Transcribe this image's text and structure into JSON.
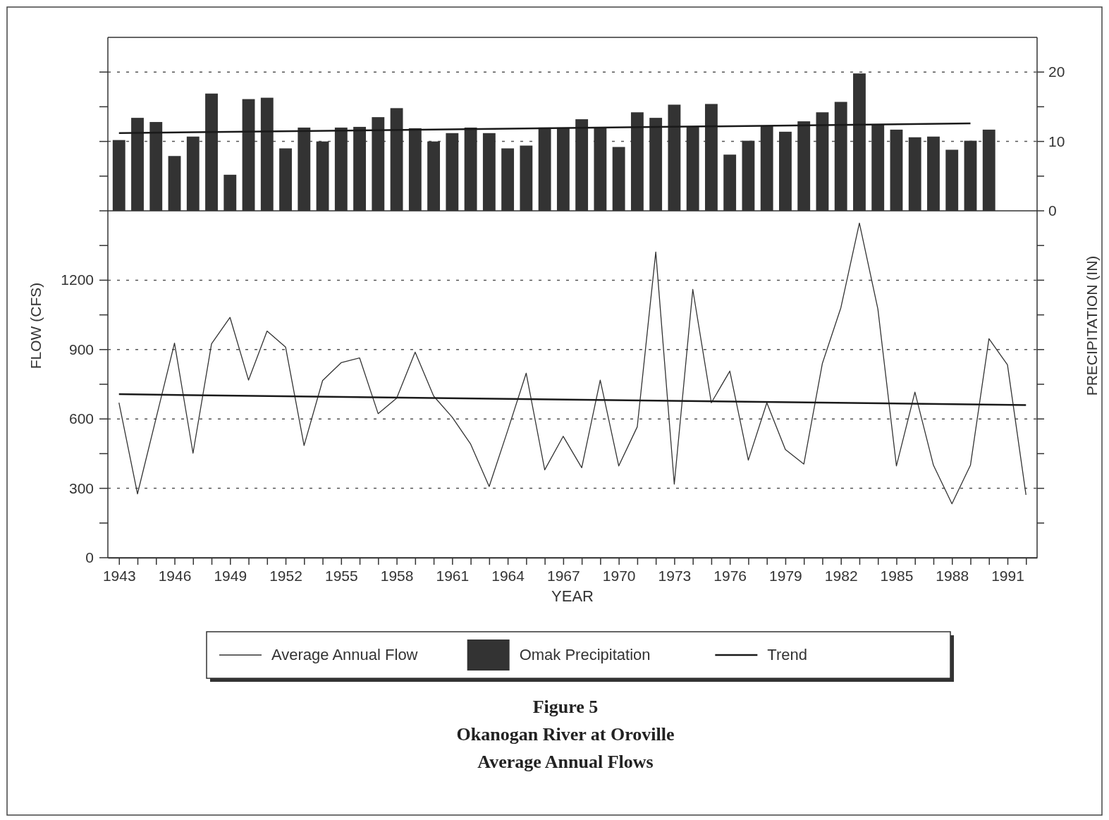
{
  "chart_data": {
    "type": "line",
    "title": "Figure 5",
    "subtitle": "Okanogan River at Oroville\nAverage Annual Flows",
    "xlabel": "YEAR",
    "ylabel": "FLOW (CFS)",
    "y2label": "PRECIPITATION (IN)",
    "xlim": [
      1942.4,
      1992.6
    ],
    "xticks": [
      1943,
      {
        "value": 1944,
        "label": null
      },
      {
        "value": 1945,
        "label": null
      },
      1946,
      {
        "value": 1947,
        "label": null
      },
      {
        "value": 1948,
        "label": null
      },
      1949,
      {
        "value": 1950,
        "label": null
      },
      {
        "value": 1951,
        "label": null
      },
      1952,
      {
        "value": 1953,
        "label": null
      },
      {
        "value": 1954,
        "label": null
      },
      1955,
      {
        "value": 1956,
        "label": null
      },
      {
        "value": 1957,
        "label": null
      },
      1958,
      {
        "value": 1959,
        "label": null
      },
      {
        "value": 1960,
        "label": null
      },
      1961,
      {
        "value": 1962,
        "label": null
      },
      {
        "value": 1963,
        "label": null
      },
      1964,
      {
        "value": 1965,
        "label": null
      },
      {
        "value": 1966,
        "label": null
      },
      1967,
      {
        "value": 1968,
        "label": null
      },
      {
        "value": 1969,
        "label": null
      },
      1970,
      {
        "value": 1971,
        "label": null
      },
      {
        "value": 1972,
        "label": null
      },
      1973,
      {
        "value": 1974,
        "label": null
      },
      {
        "value": 1975,
        "label": null
      },
      1976,
      {
        "value": 1977,
        "label": null
      },
      {
        "value": 1978,
        "label": null
      },
      1979,
      {
        "value": 1980,
        "label": null
      },
      {
        "value": 1981,
        "label": null
      },
      1982,
      {
        "value": 1983,
        "label": null
      },
      {
        "value": 1984,
        "label": null
      },
      1985,
      {
        "value": 1986,
        "label": null
      },
      {
        "value": 1987,
        "label": null
      },
      1988,
      {
        "value": 1989,
        "label": null
      },
      {
        "value": 1990,
        "label": null
      },
      1991,
      {
        "value": 1992,
        "label": null
      }
    ],
    "ylim": [
      0,
      2250
    ],
    "yticks": [
      0,
      {
        "value": 150,
        "label": null
      },
      300,
      {
        "value": 450,
        "label": null
      },
      600,
      {
        "value": 750,
        "label": null
      },
      900,
      {
        "value": 1050,
        "label": null
      },
      1200,
      {
        "value": 1350,
        "label": null
      },
      {
        "value": 1500,
        "label": null
      },
      {
        "value": 1650,
        "label": null
      },
      {
        "value": 1800,
        "label": null
      },
      {
        "value": 1950,
        "label": null
      },
      {
        "value": 2100,
        "label": null
      }
    ],
    "y2lim": [
      -50,
      25
    ],
    "y2ticks": [
      {
        "value": -45,
        "label": null
      },
      {
        "value": -40,
        "label": null
      },
      {
        "value": -35,
        "label": null
      },
      {
        "value": -30,
        "label": null
      },
      {
        "value": -25,
        "label": null
      },
      {
        "value": -20,
        "label": null
      },
      {
        "value": -15,
        "label": null
      },
      {
        "value": -10,
        "label": null
      },
      {
        "value": -5,
        "label": null
      },
      0,
      {
        "value": 5,
        "label": null
      },
      10,
      {
        "value": 15,
        "label": null
      },
      20
    ],
    "grid": true,
    "legend": "bottom",
    "ref_lines": [
      {
        "axis": "y2",
        "value": 0,
        "color": "#333333"
      }
    ],
    "series": [
      {
        "name": "Average Annual Flow",
        "color": "#333333",
        "x": [
          1943,
          1944,
          1945,
          1946,
          1947,
          1948,
          1949,
          1950,
          1951,
          1952,
          1953,
          1954,
          1955,
          1956,
          1957,
          1958,
          1959,
          1960,
          1961,
          1962,
          1963,
          1964,
          1965,
          1966,
          1967,
          1968,
          1969,
          1970,
          1971,
          1972,
          1973,
          1974,
          1975,
          1976,
          1977,
          1978,
          1979,
          1980,
          1981,
          1982,
          1983,
          1984,
          1985,
          1986,
          1987,
          1988,
          1989,
          1990,
          1991,
          1992
        ],
        "values": [
          670,
          276,
          602,
          928,
          452,
          925,
          1039,
          768,
          980,
          911,
          485,
          766,
          843,
          864,
          623,
          690,
          889,
          699,
          608,
          491,
          308,
          550,
          798,
          380,
          525,
          389,
          768,
          397,
          566,
          1322,
          318,
          1160,
          670,
          807,
          422,
          670,
          468,
          405,
          840,
          1081,
          1447,
          1075,
          397,
          716,
          400,
          233,
          400,
          947,
          834,
          272
        ]
      },
      {
        "name": "Omak Precipitation",
        "type": "bar",
        "axis": "y2",
        "color": "#333333",
        "x": [
          1943,
          1944,
          1945,
          1946,
          1947,
          1948,
          1949,
          1950,
          1951,
          1952,
          1953,
          1954,
          1955,
          1956,
          1957,
          1958,
          1959,
          1960,
          1961,
          1962,
          1963,
          1964,
          1965,
          1966,
          1967,
          1968,
          1969,
          1970,
          1971,
          1972,
          1973,
          1974,
          1975,
          1976,
          1977,
          1978,
          1979,
          1980,
          1981,
          1982,
          1983,
          1984,
          1985,
          1986,
          1987,
          1988,
          1989,
          1990
        ],
        "values": [
          10.2,
          13.4,
          12.8,
          7.9,
          10.7,
          16.9,
          5.2,
          16.1,
          16.3,
          9.0,
          12.0,
          10.0,
          12.0,
          12.1,
          13.5,
          14.8,
          11.9,
          10.0,
          11.2,
          12.0,
          11.2,
          9.0,
          9.4,
          12.0,
          12.0,
          13.2,
          12.0,
          9.2,
          14.2,
          13.4,
          15.3,
          12.2,
          15.4,
          8.1,
          10.1,
          12.2,
          11.4,
          12.9,
          14.2,
          15.7,
          19.8,
          12.4,
          11.7,
          10.6,
          10.7,
          8.8,
          10.1,
          11.7
        ]
      },
      {
        "name": "Trend",
        "color": "#1a1a1a",
        "x": [
          1943,
          1992
        ],
        "values": [
          707,
          660
        ]
      },
      {
        "axis": "y2",
        "color": "#1a1a1a",
        "x": [
          1943,
          1989
        ],
        "values": [
          11.2,
          12.6
        ]
      }
    ]
  }
}
